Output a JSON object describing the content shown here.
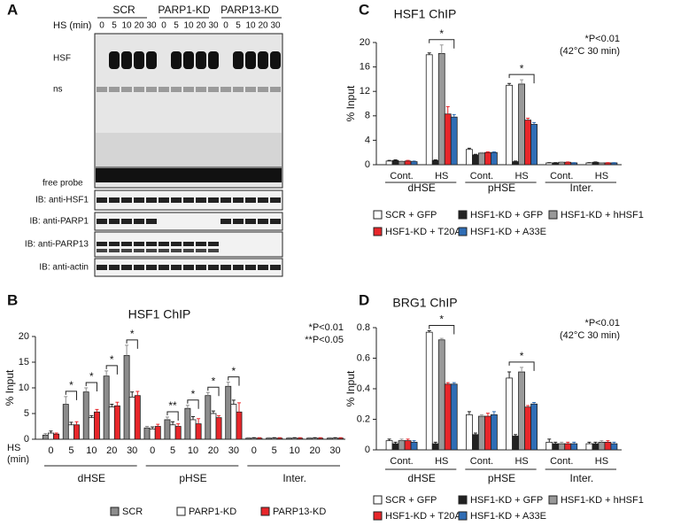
{
  "panel_a": {
    "letter": "A",
    "groups": [
      "SCR",
      "PARP1-KD",
      "PARP13-KD"
    ],
    "hs_label": "HS (min)",
    "lanes": [
      0,
      5,
      10,
      20,
      30,
      0,
      5,
      10,
      20,
      30,
      0,
      5,
      10,
      20,
      30
    ],
    "band_labels": [
      "HSF",
      "ns",
      "free probe"
    ],
    "blots": [
      "IB: anti-HSF1",
      "IB: anti-PARP1",
      "IB: anti-PARP13",
      "IB: anti-actin"
    ]
  },
  "chart_data": [
    {
      "type": "bar",
      "letter": "B",
      "title": "HSF1 ChIP",
      "y_label": "% Input",
      "x_label_lines": [
        "HS",
        "(min)"
      ],
      "annotations": [
        "*P<0.01",
        "**P<0.05"
      ],
      "groups": [
        "dHSE",
        "pHSE",
        "Inter."
      ],
      "categories": [
        "0",
        "5",
        "10",
        "20",
        "30",
        "0",
        "5",
        "10",
        "20",
        "30",
        "0",
        "5",
        "10",
        "20",
        "30"
      ],
      "series": [
        {
          "name": "SCR",
          "color": "#8c8c8c",
          "values": [
            0.8,
            6.8,
            9.2,
            12.3,
            16.3,
            2.2,
            3.8,
            6.0,
            8.5,
            10.3,
            0.2,
            0.2,
            0.2,
            0.2,
            0.2
          ],
          "errors": [
            0.3,
            1.5,
            0.8,
            1.0,
            2.0,
            0.3,
            0.5,
            0.6,
            0.6,
            0.8,
            0.1,
            0.1,
            0.1,
            0.1,
            0.1
          ]
        },
        {
          "name": "PARP1-KD",
          "color": "#ffffff",
          "values": [
            1.2,
            2.8,
            4.2,
            6.3,
            8.2,
            2.0,
            2.8,
            3.8,
            5.0,
            6.8,
            0.2,
            0.2,
            0.2,
            0.2,
            0.2
          ],
          "errors": [
            0.4,
            0.5,
            0.4,
            0.5,
            1.0,
            0.4,
            0.6,
            0.6,
            0.5,
            0.8,
            0.1,
            0.1,
            0.1,
            0.1,
            0.1
          ]
        },
        {
          "name": "PARP13-KD",
          "color": "#e8262a",
          "values": [
            1.0,
            2.8,
            5.3,
            6.5,
            8.5,
            2.5,
            2.5,
            3.0,
            4.2,
            5.3,
            0.2,
            0.2,
            0.2,
            0.2,
            0.2
          ],
          "errors": [
            0.2,
            0.6,
            0.5,
            0.7,
            0.8,
            0.4,
            0.5,
            1.0,
            0.4,
            1.8,
            0.1,
            0.1,
            0.1,
            0.1,
            0.1
          ]
        }
      ],
      "significance": [
        null,
        "*",
        "*",
        "*",
        "*",
        null,
        "**",
        "*",
        "*",
        "*",
        null,
        null,
        null,
        null,
        null
      ],
      "ylim": [
        0,
        20
      ],
      "yticks": [
        0,
        5,
        10,
        15,
        20
      ]
    },
    {
      "type": "bar",
      "letter": "C",
      "title": "HSF1 ChIP",
      "y_label": "% Input",
      "annotations": [
        "*P<0.01",
        "(42°C 30 min)"
      ],
      "groups": [
        "dHSE",
        "pHSE",
        "Inter."
      ],
      "categories": [
        "Cont.",
        "HS",
        "Cont.",
        "HS",
        "Cont.",
        "HS"
      ],
      "series": [
        {
          "name": "SCR + GFP",
          "color": "#ffffff",
          "values": [
            0.6,
            18.0,
            2.5,
            13.0,
            0.3,
            0.3
          ],
          "errors": [
            0.1,
            0.3,
            0.2,
            0.3,
            0.05,
            0.05
          ]
        },
        {
          "name": "HSF1-KD + GFP",
          "color": "#222222",
          "values": [
            0.7,
            0.7,
            1.6,
            0.5,
            0.3,
            0.4
          ],
          "errors": [
            0.1,
            0.1,
            0.1,
            0.1,
            0.05,
            0.05
          ]
        },
        {
          "name": "HSF1-KD + hHSF1",
          "color": "#999999",
          "values": [
            0.5,
            18.2,
            1.9,
            13.2,
            0.4,
            0.3
          ],
          "errors": [
            0.1,
            1.4,
            0.1,
            0.7,
            0.05,
            0.05
          ]
        },
        {
          "name": "HSF1-KD + T20A",
          "color": "#e8262a",
          "values": [
            0.6,
            8.3,
            2.0,
            7.3,
            0.4,
            0.3
          ],
          "errors": [
            0.1,
            1.2,
            0.1,
            0.3,
            0.05,
            0.05
          ]
        },
        {
          "name": "HSF1-KD + A33E",
          "color": "#2f6db5",
          "values": [
            0.5,
            7.8,
            2.0,
            6.6,
            0.3,
            0.3
          ],
          "errors": [
            0.1,
            0.4,
            0.1,
            0.3,
            0.05,
            0.05
          ]
        }
      ],
      "significance": [
        null,
        "*",
        null,
        "*",
        null,
        null
      ],
      "ylim": [
        0,
        20
      ],
      "yticks": [
        0,
        4,
        8,
        12,
        16,
        20
      ]
    },
    {
      "type": "bar",
      "letter": "D",
      "title": "BRG1 ChIP",
      "y_label": "% Input",
      "annotations": [
        "*P<0.01",
        "(42°C 30 min)"
      ],
      "groups": [
        "dHSE",
        "pHSE",
        "Inter."
      ],
      "categories": [
        "Cont.",
        "HS",
        "Cont.",
        "HS",
        "Cont.",
        "HS"
      ],
      "series": [
        {
          "name": "SCR + GFP",
          "color": "#ffffff",
          "values": [
            0.06,
            0.77,
            0.23,
            0.47,
            0.05,
            0.04
          ],
          "errors": [
            0.01,
            0.01,
            0.02,
            0.04,
            0.02,
            0.01
          ]
        },
        {
          "name": "HSF1-KD + GFP",
          "color": "#222222",
          "values": [
            0.04,
            0.04,
            0.1,
            0.09,
            0.04,
            0.04
          ],
          "errors": [
            0.01,
            0.01,
            0.01,
            0.01,
            0.01,
            0.01
          ]
        },
        {
          "name": "HSF1-KD + hHSF1",
          "color": "#999999",
          "values": [
            0.06,
            0.72,
            0.22,
            0.51,
            0.04,
            0.05
          ],
          "errors": [
            0.01,
            0.01,
            0.01,
            0.03,
            0.01,
            0.01
          ]
        },
        {
          "name": "HSF1-KD + T20A",
          "color": "#e8262a",
          "values": [
            0.06,
            0.43,
            0.22,
            0.28,
            0.04,
            0.05
          ],
          "errors": [
            0.01,
            0.01,
            0.02,
            0.01,
            0.01,
            0.01
          ]
        },
        {
          "name": "HSF1-KD + A33E",
          "color": "#2f6db5",
          "values": [
            0.05,
            0.43,
            0.23,
            0.3,
            0.04,
            0.04
          ],
          "errors": [
            0.01,
            0.01,
            0.02,
            0.01,
            0.01,
            0.01
          ]
        }
      ],
      "significance": [
        null,
        "*",
        null,
        "*",
        null,
        null
      ],
      "ylim": [
        0,
        0.8
      ],
      "yticks": [
        0,
        0.2,
        0.4,
        0.6,
        0.8
      ]
    }
  ]
}
